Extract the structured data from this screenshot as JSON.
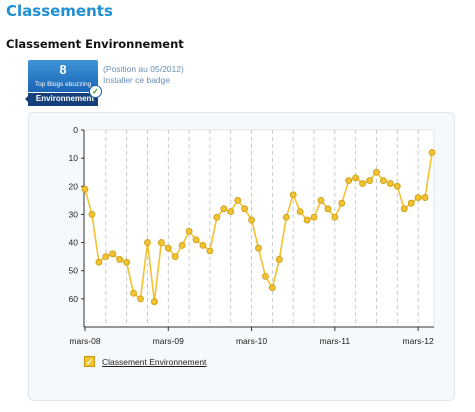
{
  "header": {
    "title": "Classements"
  },
  "section": {
    "title": "Classement Environnement"
  },
  "badge": {
    "rank": "8",
    "subtitle": "Top Blogs ebuzzing",
    "category": "Environnement",
    "position_text": "(Position au 05/2012)",
    "install_link": "Installer ce badge"
  },
  "colors": {
    "accent": "#1f8fd6",
    "series": "#f2c230",
    "badge": "#1a64b5"
  },
  "chart_data": {
    "type": "line",
    "title": "",
    "xlabel": "",
    "ylabel": "",
    "y_inverted": true,
    "ylim": [
      0,
      70
    ],
    "yticks": [
      "0",
      "10",
      "20",
      "30",
      "40",
      "50",
      "60"
    ],
    "x_tick_labels": [
      "mars-08",
      "mars-09",
      "mars-10",
      "mars-11",
      "mars-12"
    ],
    "grid": "vertical dashed lines each quarter",
    "legend": "bottom-left",
    "series": [
      {
        "name": "Classement Environnement",
        "values": [
          21,
          30,
          47,
          45,
          44,
          46,
          47,
          58,
          60,
          40,
          61,
          40,
          42,
          45,
          41,
          36,
          39,
          41,
          43,
          31,
          28,
          29,
          25,
          28,
          32,
          42,
          52,
          56,
          46,
          31,
          23,
          29,
          32,
          31,
          25,
          28,
          31,
          26,
          18,
          17,
          19,
          18,
          15,
          18,
          19,
          20,
          28,
          26,
          24,
          24,
          8
        ]
      }
    ]
  },
  "legend": {
    "label": "Classement Environnement"
  }
}
